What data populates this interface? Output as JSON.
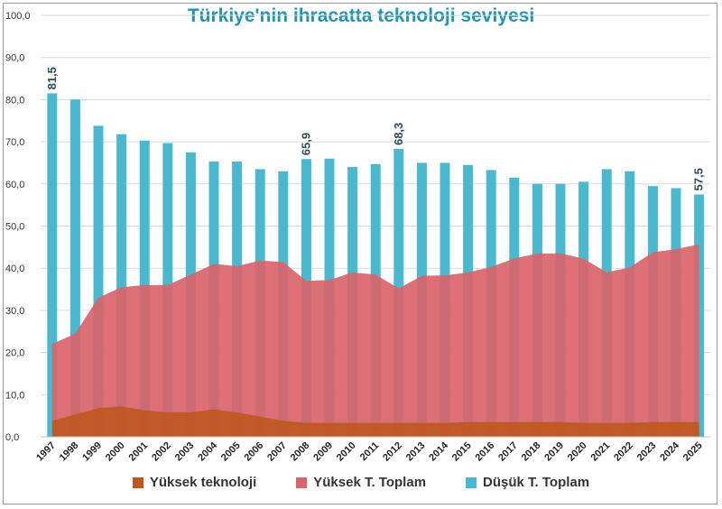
{
  "chart_data": {
    "type": "bar",
    "title": "Türkiye'nin ihracatta teknoloji seviyesi",
    "categories": [
      "1997",
      "1998",
      "1999",
      "2000",
      "2001",
      "2002",
      "2003",
      "2004",
      "2005",
      "2006",
      "2007",
      "2008",
      "2009",
      "2010",
      "2011",
      "2012",
      "2013",
      "2014",
      "2015",
      "2016",
      "2017",
      "2018",
      "2019",
      "2020",
      "2021",
      "2022",
      "2023",
      "2024",
      "2025"
    ],
    "ylim": [
      0,
      100
    ],
    "yticks": [
      "0,0",
      "10,0",
      "20,0",
      "30,0",
      "40,0",
      "50,0",
      "60,0",
      "70,0",
      "80,0",
      "90,0",
      "100,0"
    ],
    "series": [
      {
        "name": "Düşük T. Toplam",
        "kind": "bar",
        "color": "#4ab8cf",
        "values": [
          81.5,
          80.0,
          73.8,
          71.8,
          70.3,
          69.7,
          67.5,
          65.3,
          65.3,
          63.5,
          63.0,
          65.9,
          66.0,
          64.0,
          64.7,
          68.3,
          65.0,
          65.0,
          64.5,
          63.3,
          61.5,
          60.0,
          60.0,
          60.5,
          63.5,
          63.0,
          59.5,
          59.0,
          57.5
        ]
      },
      {
        "name": "Yüksek T. Toplam",
        "kind": "area",
        "color": "#d9646a",
        "values": [
          22.0,
          24.5,
          33.0,
          35.5,
          36.0,
          36.0,
          38.5,
          41.0,
          40.5,
          41.8,
          41.5,
          37.0,
          37.2,
          39.0,
          38.5,
          35.2,
          38.2,
          38.3,
          39.0,
          40.3,
          42.3,
          43.5,
          43.5,
          42.3,
          39.0,
          40.2,
          43.8,
          44.5,
          45.7
        ]
      },
      {
        "name": "Yüksek teknoloji",
        "kind": "area",
        "color": "#bf5722",
        "values": [
          3.8,
          5.3,
          6.8,
          7.2,
          6.3,
          5.8,
          5.8,
          6.5,
          5.8,
          4.8,
          3.8,
          3.3,
          3.3,
          3.3,
          3.3,
          3.3,
          3.3,
          3.3,
          3.5,
          3.5,
          3.5,
          3.5,
          3.5,
          3.3,
          3.3,
          3.3,
          3.5,
          3.5,
          3.5
        ]
      }
    ],
    "annotations": [
      {
        "category": "1997",
        "label": "81,5"
      },
      {
        "category": "2008",
        "label": "65,9"
      },
      {
        "category": "2012",
        "label": "68,3"
      },
      {
        "category": "2025",
        "label": "57,5"
      }
    ],
    "legend": [
      "Yüksek teknoloji",
      "Yüksek T. Toplam",
      "Düşük T. Toplam"
    ]
  },
  "legend_colors": {
    "Yüksek teknoloji": "#bf5722",
    "Yüksek T. Toplam": "#d9646a",
    "Düşük T. Toplam": "#4ab8cf"
  }
}
